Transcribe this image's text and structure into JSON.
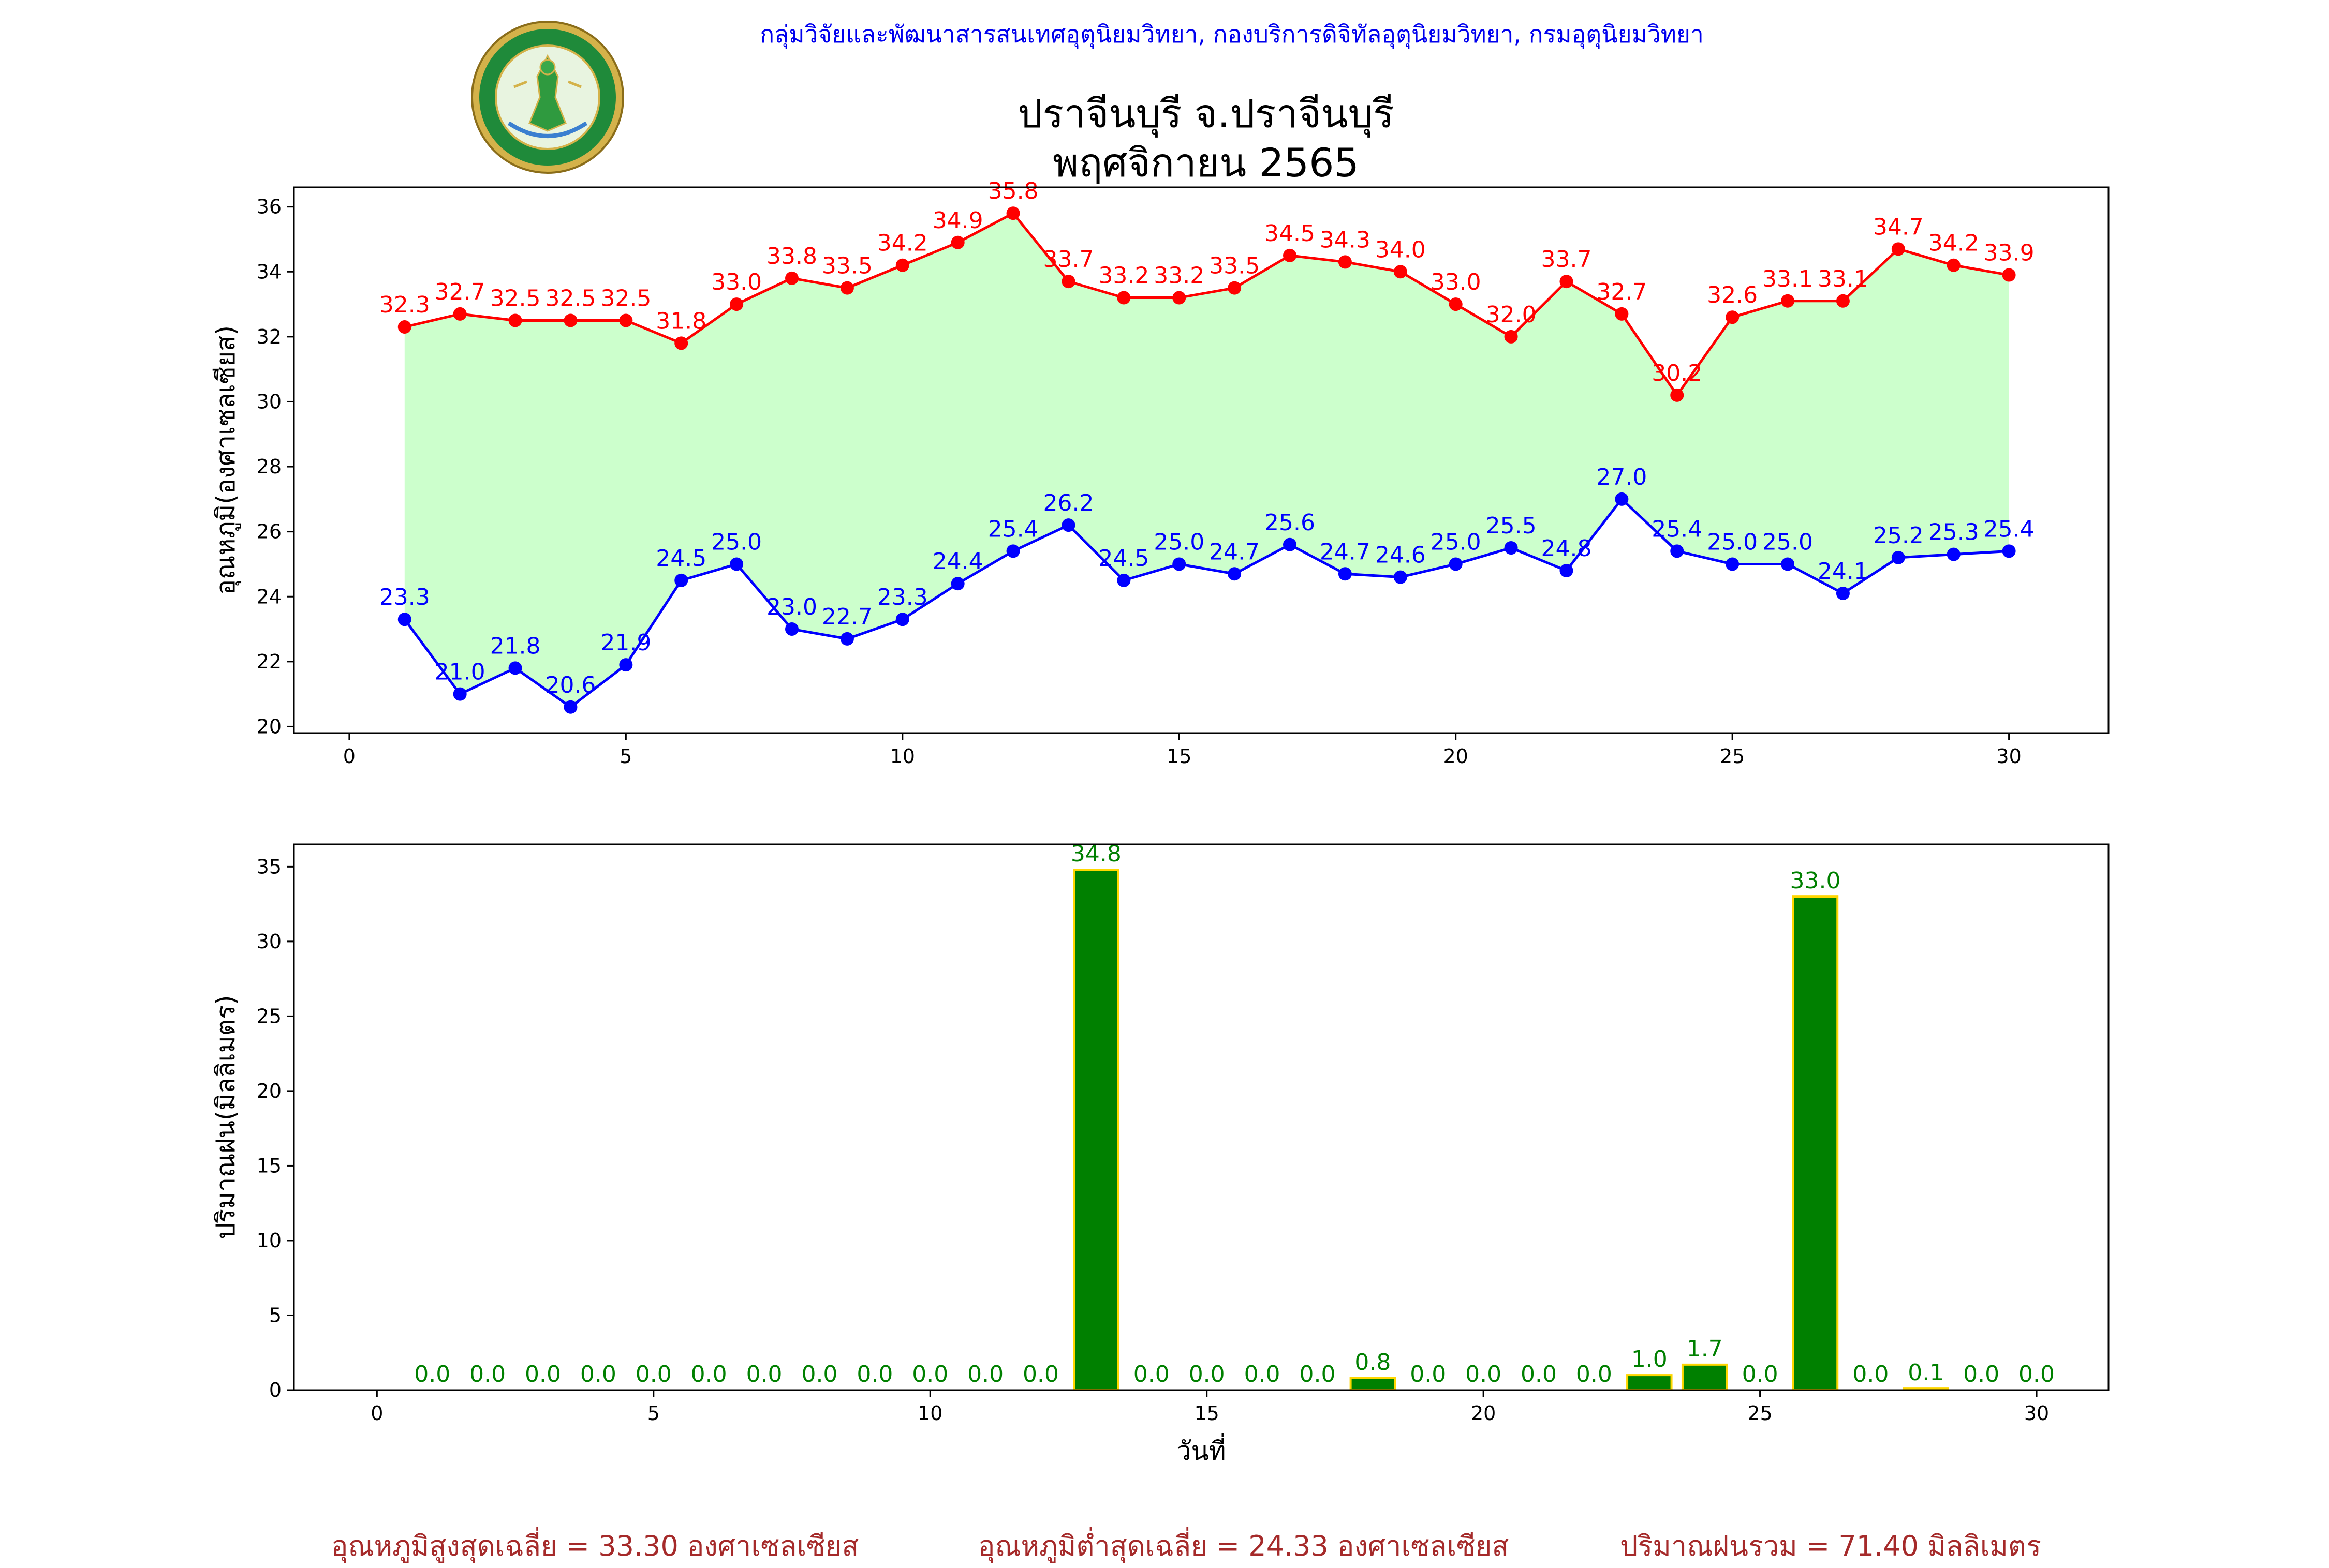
{
  "header": {
    "organization": "กลุ่มวิจัยและพัฒนาสารสนเทศอุตุนิยมวิทยา, กองบริการดิจิทัลอุตุนิยมวิทยา, กรมอุตุนิยมวิทยา",
    "title_line1": "ปราจีนบุรี จ.ปราจีนบุรี",
    "title_line2": "พฤศจิกายน 2565",
    "logo_text": "กรมอุตุนิยมวิทยา METEOROLOGICAL DEPARTMENT"
  },
  "colors": {
    "max_line": "#ff0000",
    "min_line": "#0000ff",
    "fill_between": "#ccffcc",
    "rain_bar": "#008000",
    "rain_bar_edge": "#ffd700",
    "rain_label": "#008000",
    "footer": "#a52a2a"
  },
  "chart_data": [
    {
      "type": "line",
      "title": "",
      "ylabel": "อุณหภูมิ(องศาเซลเซียส)",
      "xlabel": "",
      "xlim": [
        -1,
        31.8
      ],
      "ylim": [
        19.8,
        36.6
      ],
      "xticks": [
        0,
        5,
        10,
        15,
        20,
        25,
        30
      ],
      "yticks": [
        20,
        22,
        24,
        26,
        28,
        30,
        32,
        34,
        36
      ],
      "x": [
        1,
        2,
        3,
        4,
        5,
        6,
        7,
        8,
        9,
        10,
        11,
        12,
        13,
        14,
        15,
        16,
        17,
        18,
        19,
        20,
        21,
        22,
        23,
        24,
        25,
        26,
        27,
        28,
        29,
        30
      ],
      "series": [
        {
          "key": "max",
          "values": [
            32.3,
            32.7,
            32.5,
            32.5,
            32.5,
            31.8,
            33.0,
            33.8,
            33.5,
            34.2,
            34.9,
            35.8,
            33.7,
            33.2,
            33.2,
            33.5,
            34.5,
            34.3,
            34.0,
            33.0,
            32.0,
            33.7,
            32.7,
            30.2,
            32.6,
            33.1,
            33.1,
            34.7,
            34.2,
            33.9
          ]
        },
        {
          "key": "min",
          "values": [
            23.3,
            21.0,
            21.8,
            20.6,
            21.9,
            24.5,
            25.0,
            23.0,
            22.7,
            23.3,
            24.4,
            25.4,
            26.2,
            24.5,
            25.0,
            24.7,
            25.6,
            24.7,
            24.6,
            25.0,
            25.5,
            24.8,
            27.0,
            25.4,
            25.0,
            25.0,
            24.1,
            25.2,
            25.3,
            25.4
          ]
        }
      ],
      "fill_between": true,
      "grid": false,
      "legend": "none"
    },
    {
      "type": "bar",
      "title": "",
      "ylabel": "ปริมาณฝน(มิลลิเมตร)",
      "xlabel": "วันที่",
      "xlim": [
        -1.5,
        31.3
      ],
      "ylim": [
        0,
        36.5
      ],
      "xticks": [
        0,
        5,
        10,
        15,
        20,
        25,
        30
      ],
      "yticks": [
        0,
        5,
        10,
        15,
        20,
        25,
        30,
        35
      ],
      "x": [
        1,
        2,
        3,
        4,
        5,
        6,
        7,
        8,
        9,
        10,
        11,
        12,
        13,
        14,
        15,
        16,
        17,
        18,
        19,
        20,
        21,
        22,
        23,
        24,
        25,
        26,
        27,
        28,
        29,
        30
      ],
      "values": [
        0.0,
        0.0,
        0.0,
        0.0,
        0.0,
        0.0,
        0.0,
        0.0,
        0.0,
        0.0,
        0.0,
        0.0,
        34.8,
        0.0,
        0.0,
        0.0,
        0.0,
        0.8,
        0.0,
        0.0,
        0.0,
        0.0,
        1.0,
        1.7,
        0.0,
        33.0,
        0.0,
        0.1,
        0.0,
        0.0
      ],
      "grid": false,
      "legend": "none"
    }
  ],
  "footer": {
    "avg_max": "อุณหภูมิสูงสุดเฉลี่ย = 33.30 องศาเซลเซียส",
    "avg_min": "อุณหภูมิต่ำสุดเฉลี่ย = 24.33 องศาเซลเซียส",
    "total_rain": "ปริมาณฝนรวม = 71.40 มิลลิเมตร"
  }
}
